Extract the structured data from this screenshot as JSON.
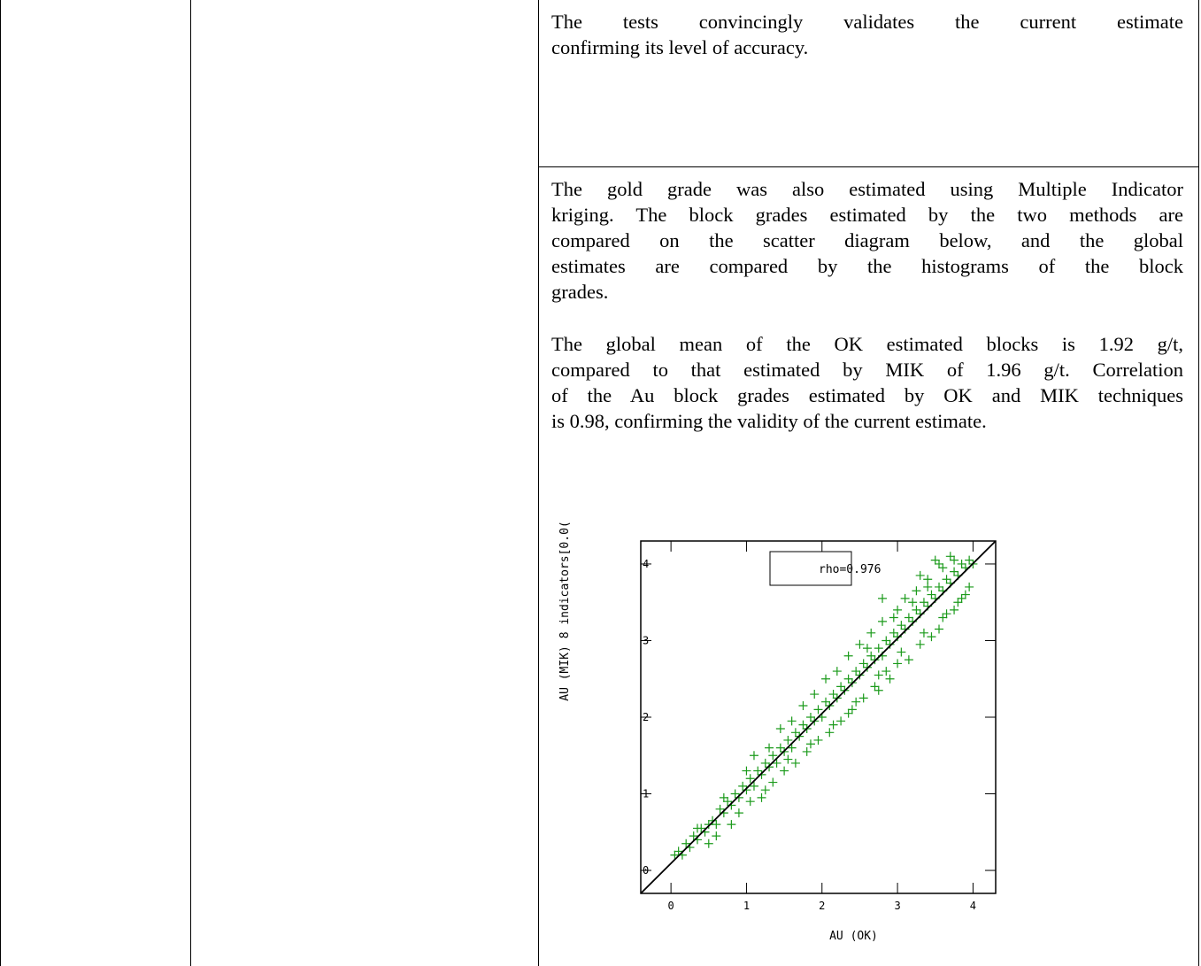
{
  "paragraphs": {
    "p1": [
      "The tests convincingly validates the current estimate",
      "confirming its level of accuracy."
    ],
    "p2": [
      "The gold grade was also estimated using Multiple Indicator",
      "kriging. The block grades estimated by the two methods are",
      "compared on the scatter diagram below, and the global",
      "estimates are compared by the histograms of the block",
      "grades."
    ],
    "p3": [
      "The global mean of the OK estimated blocks is 1.92 g/t,",
      "compared to that estimated by MIK of 1.96 g/t. Correlation",
      "of the Au block grades estimated by OK and MIK techniques",
      "is 0.98, confirming the validity of the current estimate."
    ]
  },
  "chart_data": {
    "type": "scatter",
    "xlabel": "AU (OK)",
    "ylabel": "AU (MIK) 8 indicators[0.0(",
    "annotation": "rho=0.976",
    "xlim": [
      -0.4,
      4.3
    ],
    "ylim": [
      -0.3,
      4.3
    ],
    "x_ticks": [
      0,
      1,
      2,
      3,
      4
    ],
    "y_ticks": [
      0,
      1,
      2,
      3,
      4
    ],
    "marker": "+",
    "color": "#1a9a1a",
    "reference_line": "y = x",
    "grid": false,
    "points": [
      [
        0.05,
        0.2
      ],
      [
        0.1,
        0.25
      ],
      [
        0.15,
        0.2
      ],
      [
        0.2,
        0.35
      ],
      [
        0.25,
        0.3
      ],
      [
        0.3,
        0.45
      ],
      [
        0.35,
        0.4
      ],
      [
        0.4,
        0.55
      ],
      [
        0.45,
        0.5
      ],
      [
        0.5,
        0.6
      ],
      [
        0.55,
        0.65
      ],
      [
        0.6,
        0.6
      ],
      [
        0.65,
        0.8
      ],
      [
        0.7,
        0.75
      ],
      [
        0.75,
        0.9
      ],
      [
        0.8,
        0.85
      ],
      [
        0.85,
        1.0
      ],
      [
        0.9,
        0.95
      ],
      [
        0.95,
        1.1
      ],
      [
        1.0,
        1.05
      ],
      [
        1.05,
        1.2
      ],
      [
        1.1,
        1.1
      ],
      [
        1.15,
        1.3
      ],
      [
        1.2,
        1.25
      ],
      [
        1.25,
        1.4
      ],
      [
        1.3,
        1.35
      ],
      [
        1.35,
        1.5
      ],
      [
        1.4,
        1.4
      ],
      [
        1.45,
        1.6
      ],
      [
        1.5,
        1.55
      ],
      [
        1.55,
        1.7
      ],
      [
        1.6,
        1.6
      ],
      [
        1.65,
        1.8
      ],
      [
        1.7,
        1.75
      ],
      [
        1.75,
        1.9
      ],
      [
        1.8,
        1.85
      ],
      [
        1.85,
        2.0
      ],
      [
        1.9,
        1.95
      ],
      [
        1.95,
        2.1
      ],
      [
        2.0,
        2.0
      ],
      [
        2.05,
        2.2
      ],
      [
        2.1,
        2.15
      ],
      [
        2.15,
        2.3
      ],
      [
        2.2,
        2.25
      ],
      [
        2.25,
        2.4
      ],
      [
        2.3,
        2.35
      ],
      [
        2.35,
        2.5
      ],
      [
        2.4,
        2.45
      ],
      [
        2.45,
        2.6
      ],
      [
        2.5,
        2.55
      ],
      [
        2.55,
        2.7
      ],
      [
        2.6,
        2.65
      ],
      [
        2.65,
        2.8
      ],
      [
        2.7,
        2.75
      ],
      [
        2.75,
        2.9
      ],
      [
        2.8,
        2.8
      ],
      [
        2.85,
        3.0
      ],
      [
        2.9,
        2.95
      ],
      [
        2.95,
        3.1
      ],
      [
        3.0,
        3.05
      ],
      [
        3.05,
        3.2
      ],
      [
        3.1,
        3.15
      ],
      [
        3.15,
        3.3
      ],
      [
        3.2,
        3.25
      ],
      [
        3.25,
        3.4
      ],
      [
        3.3,
        3.35
      ],
      [
        3.35,
        3.5
      ],
      [
        3.4,
        3.45
      ],
      [
        3.45,
        3.6
      ],
      [
        3.5,
        3.55
      ],
      [
        3.55,
        3.7
      ],
      [
        3.6,
        3.65
      ],
      [
        3.65,
        3.8
      ],
      [
        3.7,
        3.75
      ],
      [
        3.75,
        3.9
      ],
      [
        3.8,
        3.85
      ],
      [
        3.85,
        4.0
      ],
      [
        3.9,
        3.95
      ],
      [
        3.95,
        4.05
      ],
      [
        4.0,
        4.0
      ],
      [
        0.6,
        0.45
      ],
      [
        0.9,
        0.75
      ],
      [
        1.2,
        0.95
      ],
      [
        1.5,
        1.3
      ],
      [
        1.8,
        1.55
      ],
      [
        2.1,
        1.8
      ],
      [
        2.4,
        2.1
      ],
      [
        2.7,
        2.4
      ],
      [
        3.0,
        2.7
      ],
      [
        3.3,
        2.95
      ],
      [
        3.6,
        3.3
      ],
      [
        3.9,
        3.6
      ],
      [
        0.7,
        0.95
      ],
      [
        1.0,
        1.3
      ],
      [
        1.3,
        1.6
      ],
      [
        1.6,
        1.95
      ],
      [
        1.9,
        2.3
      ],
      [
        2.2,
        2.6
      ],
      [
        2.5,
        2.95
      ],
      [
        2.8,
        3.25
      ],
      [
        3.1,
        3.55
      ],
      [
        3.4,
        3.8
      ],
      [
        2.35,
        2.05
      ],
      [
        2.75,
        2.35
      ],
      [
        3.15,
        2.75
      ],
      [
        3.55,
        3.15
      ],
      [
        1.1,
        1.5
      ],
      [
        1.45,
        1.85
      ],
      [
        1.75,
        2.15
      ],
      [
        2.05,
        2.5
      ],
      [
        2.35,
        2.8
      ],
      [
        2.65,
        3.1
      ],
      [
        3.0,
        3.4
      ],
      [
        3.25,
        3.65
      ],
      [
        3.5,
        4.05
      ],
      [
        3.7,
        4.1
      ],
      [
        3.85,
        3.55
      ],
      [
        3.8,
        3.5
      ],
      [
        3.95,
        3.7
      ],
      [
        2.9,
        2.5
      ],
      [
        1.35,
        1.15
      ],
      [
        1.65,
        1.4
      ],
      [
        1.95,
        1.7
      ],
      [
        2.25,
        1.95
      ],
      [
        2.55,
        2.25
      ],
      [
        2.85,
        2.6
      ],
      [
        3.45,
        3.05
      ],
      [
        3.65,
        3.35
      ],
      [
        0.35,
        0.55
      ],
      [
        0.5,
        0.35
      ],
      [
        0.8,
        0.6
      ],
      [
        1.05,
        0.9
      ],
      [
        1.25,
        1.05
      ],
      [
        1.55,
        1.45
      ],
      [
        1.85,
        1.65
      ],
      [
        2.15,
        1.9
      ],
      [
        2.45,
        2.2
      ],
      [
        2.75,
        2.55
      ],
      [
        3.05,
        2.85
      ],
      [
        3.35,
        3.1
      ],
      [
        3.75,
        3.4
      ],
      [
        2.6,
        2.9
      ],
      [
        2.95,
        3.3
      ],
      [
        3.2,
        3.5
      ],
      [
        3.4,
        3.7
      ],
      [
        3.6,
        3.95
      ],
      [
        3.3,
        3.85
      ],
      [
        2.8,
        3.55
      ],
      [
        3.55,
        4.0
      ],
      [
        3.75,
        4.05
      ]
    ]
  }
}
